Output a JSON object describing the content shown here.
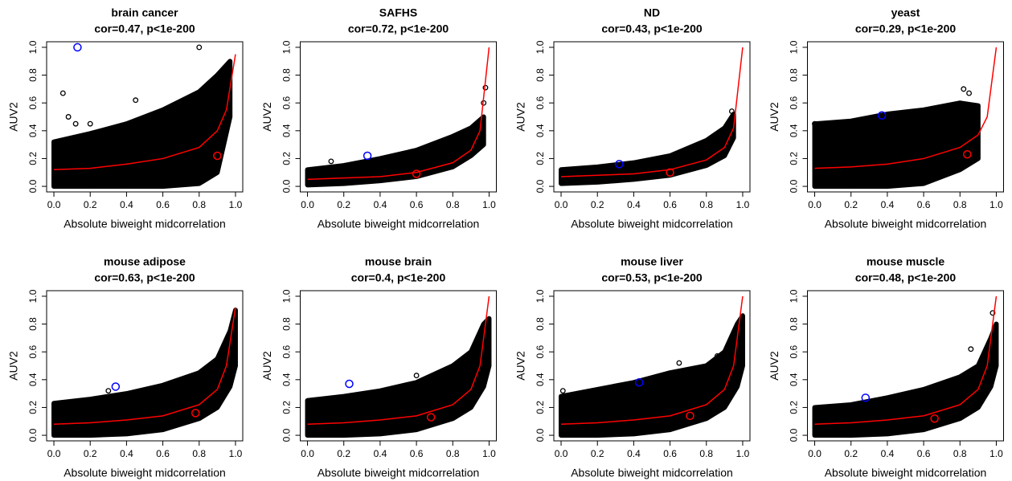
{
  "chart_data": [
    {
      "type": "scatter",
      "title": "brain cancer",
      "subtitle": "cor=0.47, p<1e-200",
      "x_label": "Absolute biweight midcorrelation",
      "y_label": "AUV2",
      "xlim": [
        -0.04,
        1.04
      ],
      "ylim": [
        -0.04,
        1.04
      ],
      "xticks": [
        {
          "value": 0,
          "label": "0.0"
        },
        0.2,
        0.4,
        0.6,
        0.8,
        {
          "value": 1,
          "label": "1.0"
        }
      ],
      "yticks": [
        {
          "value": 0,
          "label": "0.0"
        },
        0.2,
        0.4,
        0.6,
        0.8,
        {
          "value": 1,
          "label": "1.0"
        }
      ],
      "cloud": {
        "color": "#000000",
        "x": [
          0,
          0.2,
          0.4,
          0.6,
          0.8,
          0.9,
          0.97
        ],
        "lower": [
          0,
          0,
          0,
          0,
          0.02,
          0.1,
          0.5
        ],
        "upper": [
          0.32,
          0.38,
          0.45,
          0.55,
          0.68,
          0.8,
          0.9
        ]
      },
      "outliers": {
        "color": "#000000",
        "x": [
          0.05,
          0.08,
          0.12,
          0.2,
          0.45,
          0.8
        ],
        "y": [
          0.67,
          0.5,
          0.45,
          0.45,
          0.62,
          1.0
        ]
      },
      "fit": {
        "color": "#ff0000",
        "x": [
          0,
          0.2,
          0.4,
          0.6,
          0.8,
          0.9,
          0.95,
          1.0
        ],
        "y": [
          0.12,
          0.13,
          0.16,
          0.2,
          0.28,
          0.4,
          0.55,
          0.95
        ]
      },
      "highlights": [
        {
          "color": "#0000ff",
          "x": 0.13,
          "y": 1.0
        },
        {
          "color": "#ff0000",
          "x": 0.9,
          "y": 0.22
        }
      ]
    },
    {
      "type": "scatter",
      "title": "SAFHS",
      "subtitle": "cor=0.72, p<1e-200",
      "x_label": "Absolute biweight midcorrelation",
      "y_label": "AUV2",
      "xlim": [
        -0.04,
        1.04
      ],
      "ylim": [
        -0.04,
        1.04
      ],
      "xticks": [
        {
          "value": 0,
          "label": "0.0"
        },
        0.2,
        0.4,
        0.6,
        0.8,
        {
          "value": 1,
          "label": "1.0"
        }
      ],
      "yticks": [
        {
          "value": 0,
          "label": "0.0"
        },
        0.2,
        0.4,
        0.6,
        0.8,
        {
          "value": 1,
          "label": "1.0"
        }
      ],
      "cloud": {
        "color": "#000000",
        "x": [
          0,
          0.2,
          0.4,
          0.6,
          0.8,
          0.9,
          0.97
        ],
        "lower": [
          0.01,
          0.02,
          0.04,
          0.07,
          0.14,
          0.22,
          0.3
        ],
        "upper": [
          0.12,
          0.15,
          0.2,
          0.26,
          0.36,
          0.42,
          0.5
        ]
      },
      "outliers": {
        "color": "#000000",
        "x": [
          0.13,
          0.3,
          0.97,
          0.98
        ],
        "y": [
          0.18,
          0.17,
          0.6,
          0.71
        ]
      },
      "fit": {
        "color": "#ff0000",
        "x": [
          0,
          0.2,
          0.4,
          0.6,
          0.8,
          0.9,
          0.95,
          1.0
        ],
        "y": [
          0.05,
          0.06,
          0.07,
          0.1,
          0.17,
          0.26,
          0.4,
          1.0
        ]
      },
      "highlights": [
        {
          "color": "#0000ff",
          "x": 0.33,
          "y": 0.22
        },
        {
          "color": "#ff0000",
          "x": 0.6,
          "y": 0.09
        }
      ]
    },
    {
      "type": "scatter",
      "title": "ND",
      "subtitle": "cor=0.43, p<1e-200",
      "x_label": "Absolute biweight midcorrelation",
      "y_label": "AUV2",
      "xlim": [
        -0.04,
        1.04
      ],
      "ylim": [
        -0.04,
        1.04
      ],
      "xticks": [
        {
          "value": 0,
          "label": "0.0"
        },
        0.2,
        0.4,
        0.6,
        0.8,
        {
          "value": 1,
          "label": "1.0"
        }
      ],
      "yticks": [
        {
          "value": 0,
          "label": "0.0"
        },
        0.2,
        0.4,
        0.6,
        0.8,
        {
          "value": 1,
          "label": "1.0"
        }
      ],
      "cloud": {
        "color": "#000000",
        "x": [
          0,
          0.2,
          0.4,
          0.6,
          0.8,
          0.9,
          0.95
        ],
        "lower": [
          0.02,
          0.03,
          0.05,
          0.08,
          0.15,
          0.22,
          0.35
        ],
        "upper": [
          0.12,
          0.14,
          0.17,
          0.22,
          0.33,
          0.42,
          0.52
        ]
      },
      "outliers": {
        "color": "#000000",
        "x": [
          0.94
        ],
        "y": [
          0.54
        ]
      },
      "fit": {
        "color": "#ff0000",
        "x": [
          0,
          0.2,
          0.4,
          0.6,
          0.8,
          0.9,
          0.95,
          1.0
        ],
        "y": [
          0.07,
          0.08,
          0.09,
          0.12,
          0.19,
          0.28,
          0.42,
          1.0
        ]
      },
      "highlights": [
        {
          "color": "#0000ff",
          "x": 0.32,
          "y": 0.16
        },
        {
          "color": "#ff0000",
          "x": 0.6,
          "y": 0.1
        }
      ]
    },
    {
      "type": "scatter",
      "title": "yeast",
      "subtitle": "cor=0.29, p<1e-200",
      "x_label": "Absolute biweight midcorrelation",
      "y_label": "AUV2",
      "xlim": [
        -0.04,
        1.04
      ],
      "ylim": [
        -0.04,
        1.04
      ],
      "xticks": [
        {
          "value": 0,
          "label": "0.0"
        },
        0.2,
        0.4,
        0.6,
        0.8,
        {
          "value": 1,
          "label": "1.0"
        }
      ],
      "yticks": [
        {
          "value": 0,
          "label": "0.0"
        },
        0.2,
        0.4,
        0.6,
        0.8,
        {
          "value": 1,
          "label": "1.0"
        }
      ],
      "cloud": {
        "color": "#000000",
        "x": [
          0,
          0.2,
          0.4,
          0.6,
          0.8,
          0.9
        ],
        "lower": [
          0,
          0,
          0,
          0.02,
          0.12,
          0.2
        ],
        "upper": [
          0.45,
          0.47,
          0.52,
          0.55,
          0.6,
          0.58
        ]
      },
      "outliers": {
        "color": "#000000",
        "x": [
          0.0,
          0.82,
          0.85
        ],
        "y": [
          0.45,
          0.7,
          0.67
        ]
      },
      "fit": {
        "color": "#ff0000",
        "x": [
          0,
          0.2,
          0.4,
          0.6,
          0.8,
          0.9,
          0.95,
          1.0
        ],
        "y": [
          0.13,
          0.14,
          0.16,
          0.2,
          0.28,
          0.37,
          0.5,
          1.0
        ]
      },
      "highlights": [
        {
          "color": "#0000ff",
          "x": 0.37,
          "y": 0.51
        },
        {
          "color": "#ff0000",
          "x": 0.84,
          "y": 0.23
        }
      ]
    },
    {
      "type": "scatter",
      "title": "mouse adipose",
      "subtitle": "cor=0.63, p<1e-200",
      "x_label": "Absolute biweight midcorrelation",
      "y_label": "AUV2",
      "xlim": [
        -0.04,
        1.04
      ],
      "ylim": [
        -0.04,
        1.04
      ],
      "xticks": [
        {
          "value": 0,
          "label": "0.0"
        },
        0.2,
        0.4,
        0.6,
        0.8,
        {
          "value": 1,
          "label": "1.0"
        }
      ],
      "yticks": [
        {
          "value": 0,
          "label": "0.0"
        },
        0.2,
        0.4,
        0.6,
        0.8,
        {
          "value": 1,
          "label": "1.0"
        }
      ],
      "cloud": {
        "color": "#000000",
        "x": [
          0,
          0.2,
          0.4,
          0.6,
          0.8,
          0.9,
          0.97,
          1.0
        ],
        "lower": [
          0,
          0,
          0.01,
          0.04,
          0.12,
          0.2,
          0.35,
          0.5
        ],
        "upper": [
          0.23,
          0.26,
          0.3,
          0.36,
          0.45,
          0.55,
          0.75,
          0.9
        ]
      },
      "outliers": {
        "color": "#000000",
        "x": [
          0.3
        ],
        "y": [
          0.32
        ]
      },
      "fit": {
        "color": "#ff0000",
        "x": [
          0,
          0.2,
          0.4,
          0.6,
          0.8,
          0.9,
          0.95,
          1.0
        ],
        "y": [
          0.08,
          0.09,
          0.11,
          0.14,
          0.22,
          0.33,
          0.5,
          0.92
        ]
      },
      "highlights": [
        {
          "color": "#0000ff",
          "x": 0.34,
          "y": 0.35
        },
        {
          "color": "#ff0000",
          "x": 0.78,
          "y": 0.16
        }
      ]
    },
    {
      "type": "scatter",
      "title": "mouse brain",
      "subtitle": "cor=0.4, p<1e-200",
      "x_label": "Absolute biweight midcorrelation",
      "y_label": "AUV2",
      "xlim": [
        -0.04,
        1.04
      ],
      "ylim": [
        -0.04,
        1.04
      ],
      "xticks": [
        {
          "value": 0,
          "label": "0.0"
        },
        0.2,
        0.4,
        0.6,
        0.8,
        {
          "value": 1,
          "label": "1.0"
        }
      ],
      "yticks": [
        {
          "value": 0,
          "label": "0.0"
        },
        0.2,
        0.4,
        0.6,
        0.8,
        {
          "value": 1,
          "label": "1.0"
        }
      ],
      "cloud": {
        "color": "#000000",
        "x": [
          0,
          0.2,
          0.4,
          0.6,
          0.8,
          0.9,
          0.97,
          1.0
        ],
        "lower": [
          0,
          0,
          0.01,
          0.04,
          0.12,
          0.2,
          0.35,
          0.5
        ],
        "upper": [
          0.25,
          0.28,
          0.32,
          0.38,
          0.5,
          0.6,
          0.8,
          0.84
        ]
      },
      "outliers": {
        "color": "#000000",
        "x": [
          0.6,
          0.75
        ],
        "y": [
          0.43,
          0.45
        ]
      },
      "fit": {
        "color": "#ff0000",
        "x": [
          0,
          0.2,
          0.4,
          0.6,
          0.8,
          0.9,
          0.95,
          1.0
        ],
        "y": [
          0.08,
          0.09,
          0.11,
          0.14,
          0.22,
          0.33,
          0.5,
          1.0
        ]
      },
      "highlights": [
        {
          "color": "#0000ff",
          "x": 0.23,
          "y": 0.37
        },
        {
          "color": "#ff0000",
          "x": 0.68,
          "y": 0.13
        }
      ]
    },
    {
      "type": "scatter",
      "title": "mouse liver",
      "subtitle": "cor=0.53, p<1e-200",
      "x_label": "Absolute biweight midcorrelation",
      "y_label": "AUV2",
      "xlim": [
        -0.04,
        1.04
      ],
      "ylim": [
        -0.04,
        1.04
      ],
      "xticks": [
        {
          "value": 0,
          "label": "0.0"
        },
        0.2,
        0.4,
        0.6,
        0.8,
        {
          "value": 1,
          "label": "1.0"
        }
      ],
      "yticks": [
        {
          "value": 0,
          "label": "0.0"
        },
        0.2,
        0.4,
        0.6,
        0.8,
        {
          "value": 1,
          "label": "1.0"
        }
      ],
      "cloud": {
        "color": "#000000",
        "x": [
          0,
          0.2,
          0.4,
          0.6,
          0.8,
          0.9,
          0.97,
          1.0
        ],
        "lower": [
          0,
          0,
          0.01,
          0.04,
          0.12,
          0.2,
          0.35,
          0.5
        ],
        "upper": [
          0.28,
          0.33,
          0.38,
          0.45,
          0.5,
          0.6,
          0.8,
          0.86
        ]
      },
      "outliers": {
        "color": "#000000",
        "x": [
          0.01,
          0.65,
          0.86
        ],
        "y": [
          0.32,
          0.52,
          0.57
        ]
      },
      "fit": {
        "color": "#ff0000",
        "x": [
          0,
          0.2,
          0.4,
          0.6,
          0.8,
          0.9,
          0.95,
          1.0
        ],
        "y": [
          0.08,
          0.09,
          0.11,
          0.14,
          0.22,
          0.33,
          0.5,
          1.0
        ]
      },
      "highlights": [
        {
          "color": "#0000ff",
          "x": 0.43,
          "y": 0.38
        },
        {
          "color": "#ff0000",
          "x": 0.71,
          "y": 0.14
        }
      ]
    },
    {
      "type": "scatter",
      "title": "mouse muscle",
      "subtitle": "cor=0.48, p<1e-200",
      "x_label": "Absolute biweight midcorrelation",
      "y_label": "AUV2",
      "xlim": [
        -0.04,
        1.04
      ],
      "ylim": [
        -0.04,
        1.04
      ],
      "xticks": [
        {
          "value": 0,
          "label": "0.0"
        },
        0.2,
        0.4,
        0.6,
        0.8,
        {
          "value": 1,
          "label": "1.0"
        }
      ],
      "yticks": [
        {
          "value": 0,
          "label": "0.0"
        },
        0.2,
        0.4,
        0.6,
        0.8,
        {
          "value": 1,
          "label": "1.0"
        }
      ],
      "cloud": {
        "color": "#000000",
        "x": [
          0,
          0.2,
          0.4,
          0.6,
          0.8,
          0.9,
          0.97,
          1.0
        ],
        "lower": [
          0,
          0,
          0.01,
          0.04,
          0.12,
          0.2,
          0.35,
          0.5
        ],
        "upper": [
          0.2,
          0.22,
          0.27,
          0.33,
          0.42,
          0.5,
          0.7,
          0.8
        ]
      },
      "outliers": {
        "color": "#000000",
        "x": [
          0.86,
          0.98
        ],
        "y": [
          0.62,
          0.88
        ]
      },
      "fit": {
        "color": "#ff0000",
        "x": [
          0,
          0.2,
          0.4,
          0.6,
          0.8,
          0.9,
          0.95,
          1.0
        ],
        "y": [
          0.08,
          0.09,
          0.11,
          0.14,
          0.22,
          0.33,
          0.5,
          1.0
        ]
      },
      "highlights": [
        {
          "color": "#0000ff",
          "x": 0.28,
          "y": 0.27
        },
        {
          "color": "#ff0000",
          "x": 0.66,
          "y": 0.12
        }
      ]
    }
  ]
}
